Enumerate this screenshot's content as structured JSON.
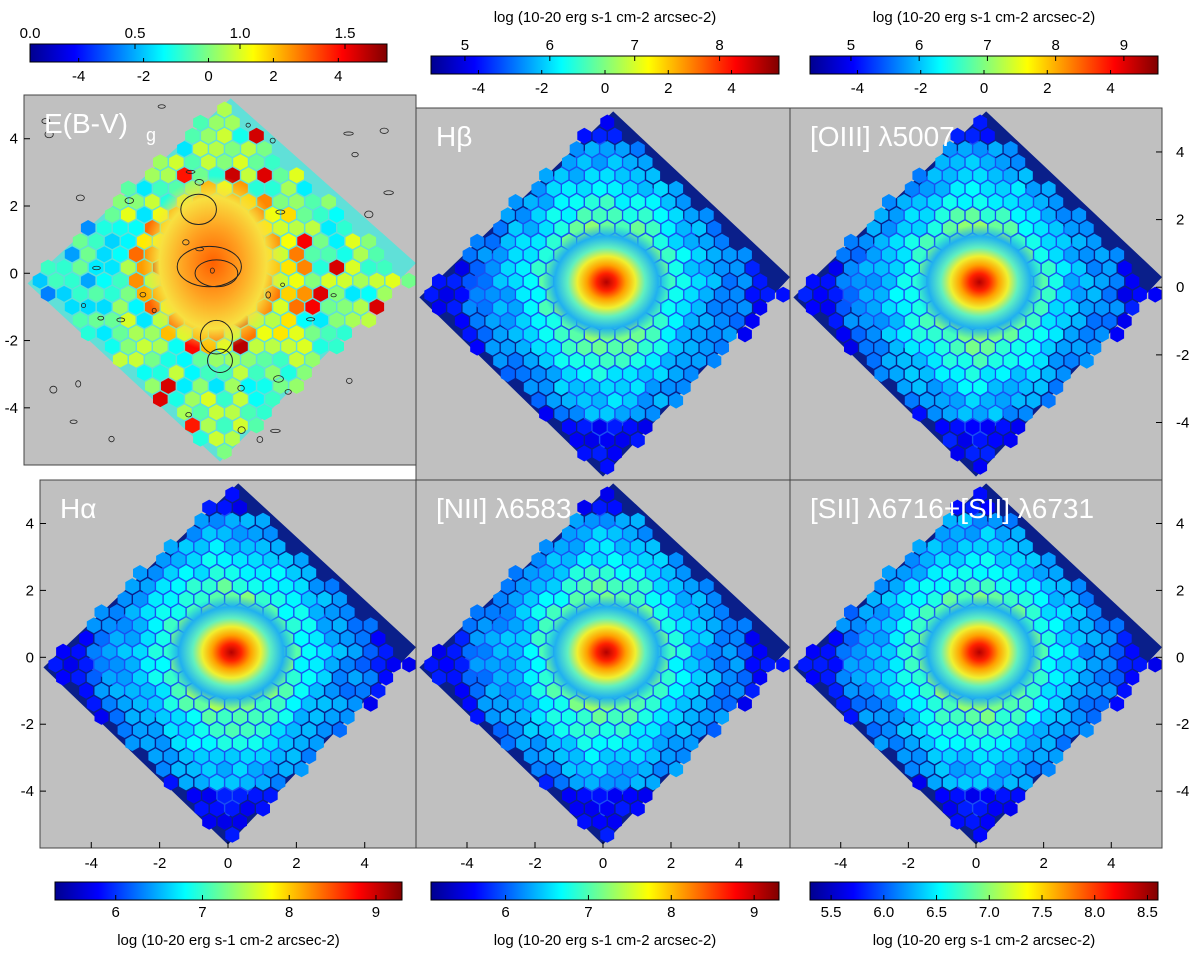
{
  "colors": {
    "panel_bg": "#c0c0c0",
    "frame": "#444444",
    "outer_field": "#0a1f8a"
  },
  "chart_data": [
    {
      "type": "heatmap",
      "id": "ebv",
      "title": "E(B-V)",
      "title_sub": "g",
      "cbar": {
        "ticks": [
          "0.0",
          "0.5",
          "1.0",
          "1.5"
        ],
        "tick_values": [
          0.0,
          0.5,
          1.0,
          1.5
        ],
        "range": [
          0.0,
          1.7
        ],
        "label": ""
      },
      "xlim": [
        -5.5,
        5.5
      ],
      "ylim": [
        -5.7,
        5.3
      ],
      "xticks": [
        "-4",
        "-2",
        "0",
        "2",
        "4"
      ],
      "yticks": [
        "4",
        "2",
        "0",
        "-2",
        "-4"
      ],
      "contours": true
    },
    {
      "type": "heatmap",
      "id": "hbeta",
      "title": "Hβ",
      "cbar": {
        "ticks": [
          "5",
          "6",
          "7",
          "8"
        ],
        "tick_values": [
          5,
          6,
          7,
          8
        ],
        "range": [
          4.6,
          8.7
        ],
        "label": "log (10-20 erg s-1 cm-2 arcsec-2)"
      },
      "xlim": [
        -5.5,
        5.5
      ],
      "ylim": [
        -5.7,
        5.3
      ],
      "xticks": [
        "-4",
        "-2",
        "0",
        "2",
        "4"
      ]
    },
    {
      "type": "heatmap",
      "id": "oiii",
      "title": "[OIII] λ5007",
      "cbar": {
        "ticks": [
          "5",
          "6",
          "7",
          "8",
          "9"
        ],
        "tick_values": [
          5,
          6,
          7,
          8,
          9
        ],
        "range": [
          4.4,
          9.5
        ],
        "label": "log (10-20 erg s-1 cm-2 arcsec-2)"
      },
      "xlim": [
        -5.5,
        5.5
      ],
      "ylim": [
        -5.7,
        5.3
      ],
      "xticks": [
        "-4",
        "-2",
        "0",
        "2",
        "4"
      ],
      "yticks": [
        "4",
        "2",
        "0",
        "-2",
        "-4"
      ]
    },
    {
      "type": "heatmap",
      "id": "halpha",
      "title": "Hα",
      "cbar": {
        "ticks": [
          "6",
          "7",
          "8",
          "9"
        ],
        "tick_values": [
          6,
          7,
          8,
          9
        ],
        "range": [
          5.3,
          9.3
        ],
        "label": "log (10-20 erg s-1 cm-2 arcsec-2)"
      },
      "xlim": [
        -5.5,
        5.5
      ],
      "ylim": [
        -5.7,
        5.3
      ],
      "xticks": [
        "-4",
        "-2",
        "0",
        "2",
        "4"
      ],
      "yticks": [
        "4",
        "2",
        "0",
        "-2",
        "-4"
      ]
    },
    {
      "type": "heatmap",
      "id": "nii",
      "title": "[NII] λ6583",
      "cbar": {
        "ticks": [
          "6",
          "7",
          "8",
          "9"
        ],
        "tick_values": [
          6,
          7,
          8,
          9
        ],
        "range": [
          5.1,
          9.3
        ],
        "label": "log (10-20 erg s-1 cm-2 arcsec-2)"
      },
      "xlim": [
        -5.5,
        5.5
      ],
      "ylim": [
        -5.7,
        5.3
      ],
      "xticks": [
        "-4",
        "-2",
        "0",
        "2",
        "4"
      ]
    },
    {
      "type": "heatmap",
      "id": "sii",
      "title": "[SII] λ6716+[SII] λ6731",
      "cbar": {
        "ticks": [
          "5.5",
          "6.0",
          "6.5",
          "7.0",
          "7.5",
          "8.0",
          "8.5"
        ],
        "tick_values": [
          5.5,
          6.0,
          6.5,
          7.0,
          7.5,
          8.0,
          8.5
        ],
        "range": [
          5.3,
          8.6
        ],
        "label": "log (10-20 erg s-1 cm-2 arcsec-2)"
      },
      "xlim": [
        -5.5,
        5.5
      ],
      "ylim": [
        -5.7,
        5.3
      ],
      "xticks": [
        "-4",
        "-2",
        "0",
        "2",
        "4"
      ],
      "yticks": [
        "4",
        "2",
        "0",
        "-2",
        "-4"
      ]
    }
  ],
  "colorbar_axis_ticks": [
    "-4",
    "-2",
    "0",
    "2",
    "4"
  ]
}
